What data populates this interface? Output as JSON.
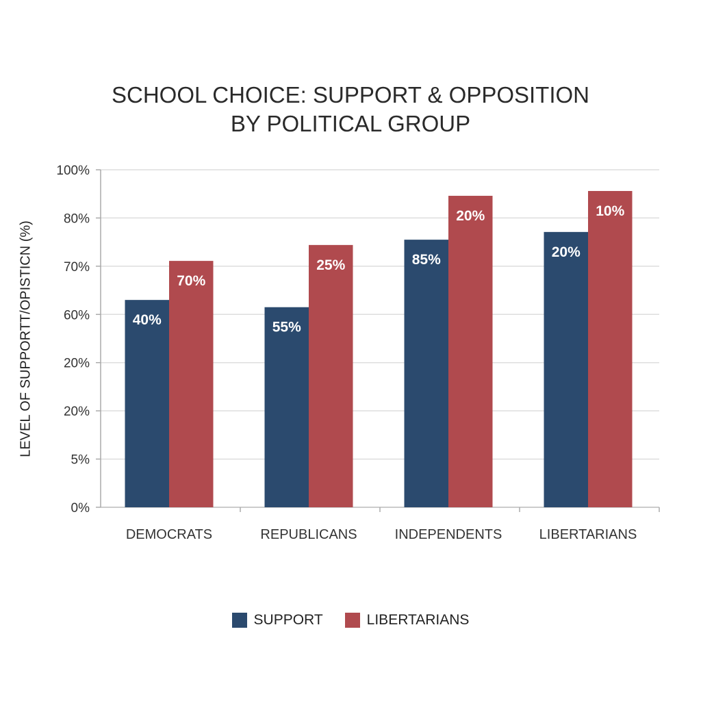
{
  "chart_data": {
    "type": "bar",
    "title": [
      "SCHOOL CHOICE: SUPPORT & OPPOSITION",
      "BY POLITICAL GROUP"
    ],
    "xlabel": "",
    "ylabel": "LEVEL OF SUPPORTT/OPISTICN (%)",
    "y_tick_labels": [
      "0%",
      "5%",
      "20%",
      "20%",
      "60%",
      "70%",
      "80%",
      "100%"
    ],
    "y_scale_note": "tick labels are evenly spaced; bar levels are given in tick-index units (0 = 0%, 7 = 100%)",
    "ylim": [
      0,
      7
    ],
    "grid": true,
    "categories": [
      "DEMOCRATS",
      "REPUBLICANS",
      "INDEPENDENTS",
      "LIBERTARIANS"
    ],
    "series": [
      {
        "name": "SUPPORT",
        "color": "#2b4a6e",
        "levels": [
          4.3,
          4.15,
          5.55,
          5.71
        ],
        "labels": [
          "40%",
          "55%",
          "85%",
          "20%"
        ]
      },
      {
        "name": "LIBERTARIANS",
        "color": "#b04a4e",
        "levels": [
          5.11,
          5.44,
          6.46,
          6.56
        ],
        "labels": [
          "70%",
          "25%",
          "20%",
          "10%"
        ]
      }
    ],
    "legend_position": "bottom"
  }
}
